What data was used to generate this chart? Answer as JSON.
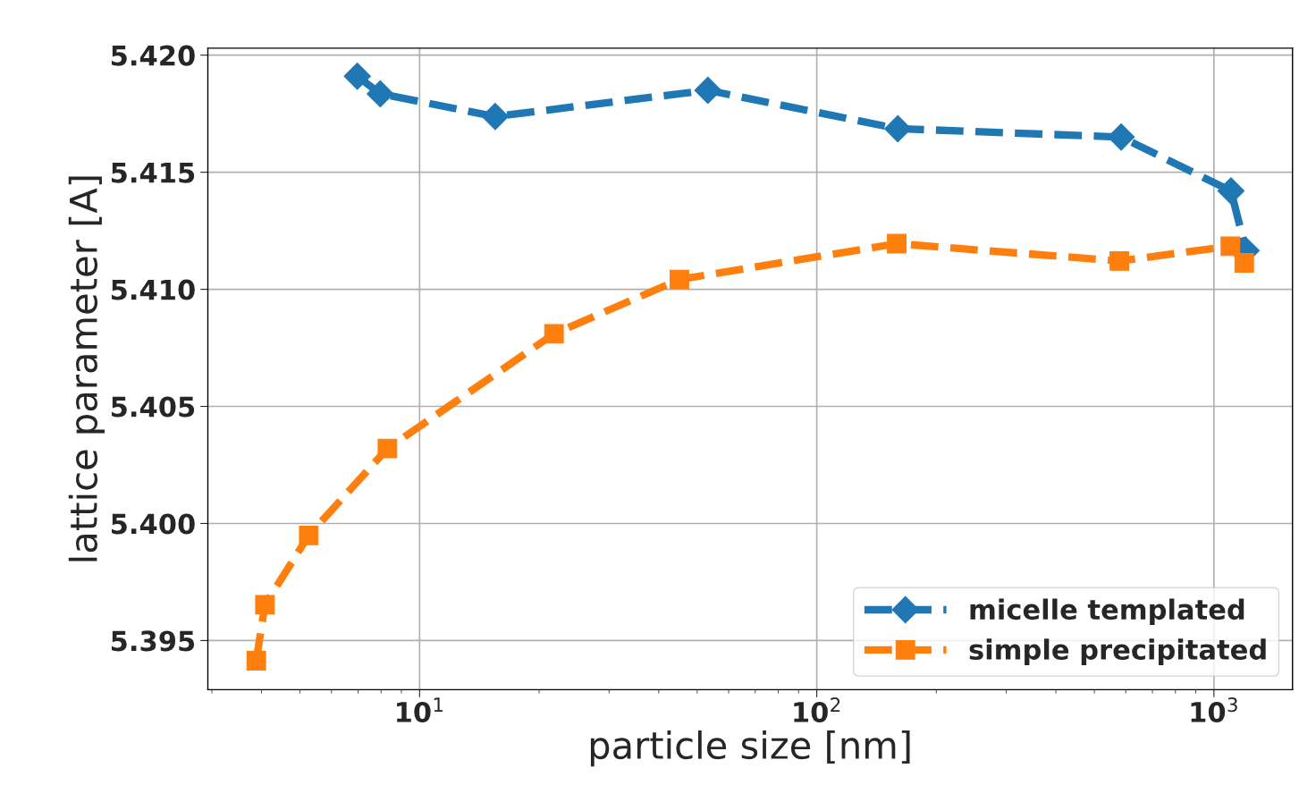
{
  "chart_data": {
    "type": "line",
    "xlabel": "particle size [nm]",
    "ylabel": "lattice parameter [A]",
    "log": "x",
    "grid": true,
    "legend": "bottom right",
    "line_style": "dashed",
    "xlim": [
      2.93,
      1577
    ],
    "ylim": [
      5.3929,
      5.4203
    ],
    "xticks": [
      {
        "value": 10,
        "label": "10$^{1}$"
      },
      {
        "value": 100,
        "label": "10$^{2}$"
      },
      {
        "value": 1000,
        "label": "10$^{3}$"
      }
    ],
    "yticks": [
      {
        "value": 5.395,
        "label": "5.395"
      },
      {
        "value": 5.4,
        "label": "5.400"
      },
      {
        "value": 5.405,
        "label": "5.405"
      },
      {
        "value": 5.41,
        "label": "5.410"
      },
      {
        "value": 5.415,
        "label": "5.415"
      },
      {
        "value": 5.42,
        "label": "5.420"
      }
    ],
    "series": [
      {
        "name": "micelle templated",
        "color": "#1f77b4",
        "marker": "diamond",
        "x": [
          6.97,
          7.96,
          15.5,
          53.2,
          160,
          584,
          1104,
          1205
        ],
        "values": [
          5.4191,
          5.41835,
          5.41738,
          5.4185,
          5.41686,
          5.4165,
          5.4142,
          5.41165
        ]
      },
      {
        "name": "simple precipitated",
        "color": "#ff7f0e",
        "marker": "square",
        "x": [
          3.88,
          4.08,
          5.26,
          8.3,
          21.8,
          45.1,
          159,
          578,
          1100,
          1192
        ],
        "values": [
          5.39414,
          5.39653,
          5.39949,
          5.4032,
          5.4081,
          5.41042,
          5.41195,
          5.41121,
          5.41184,
          5.41113
        ]
      }
    ]
  }
}
